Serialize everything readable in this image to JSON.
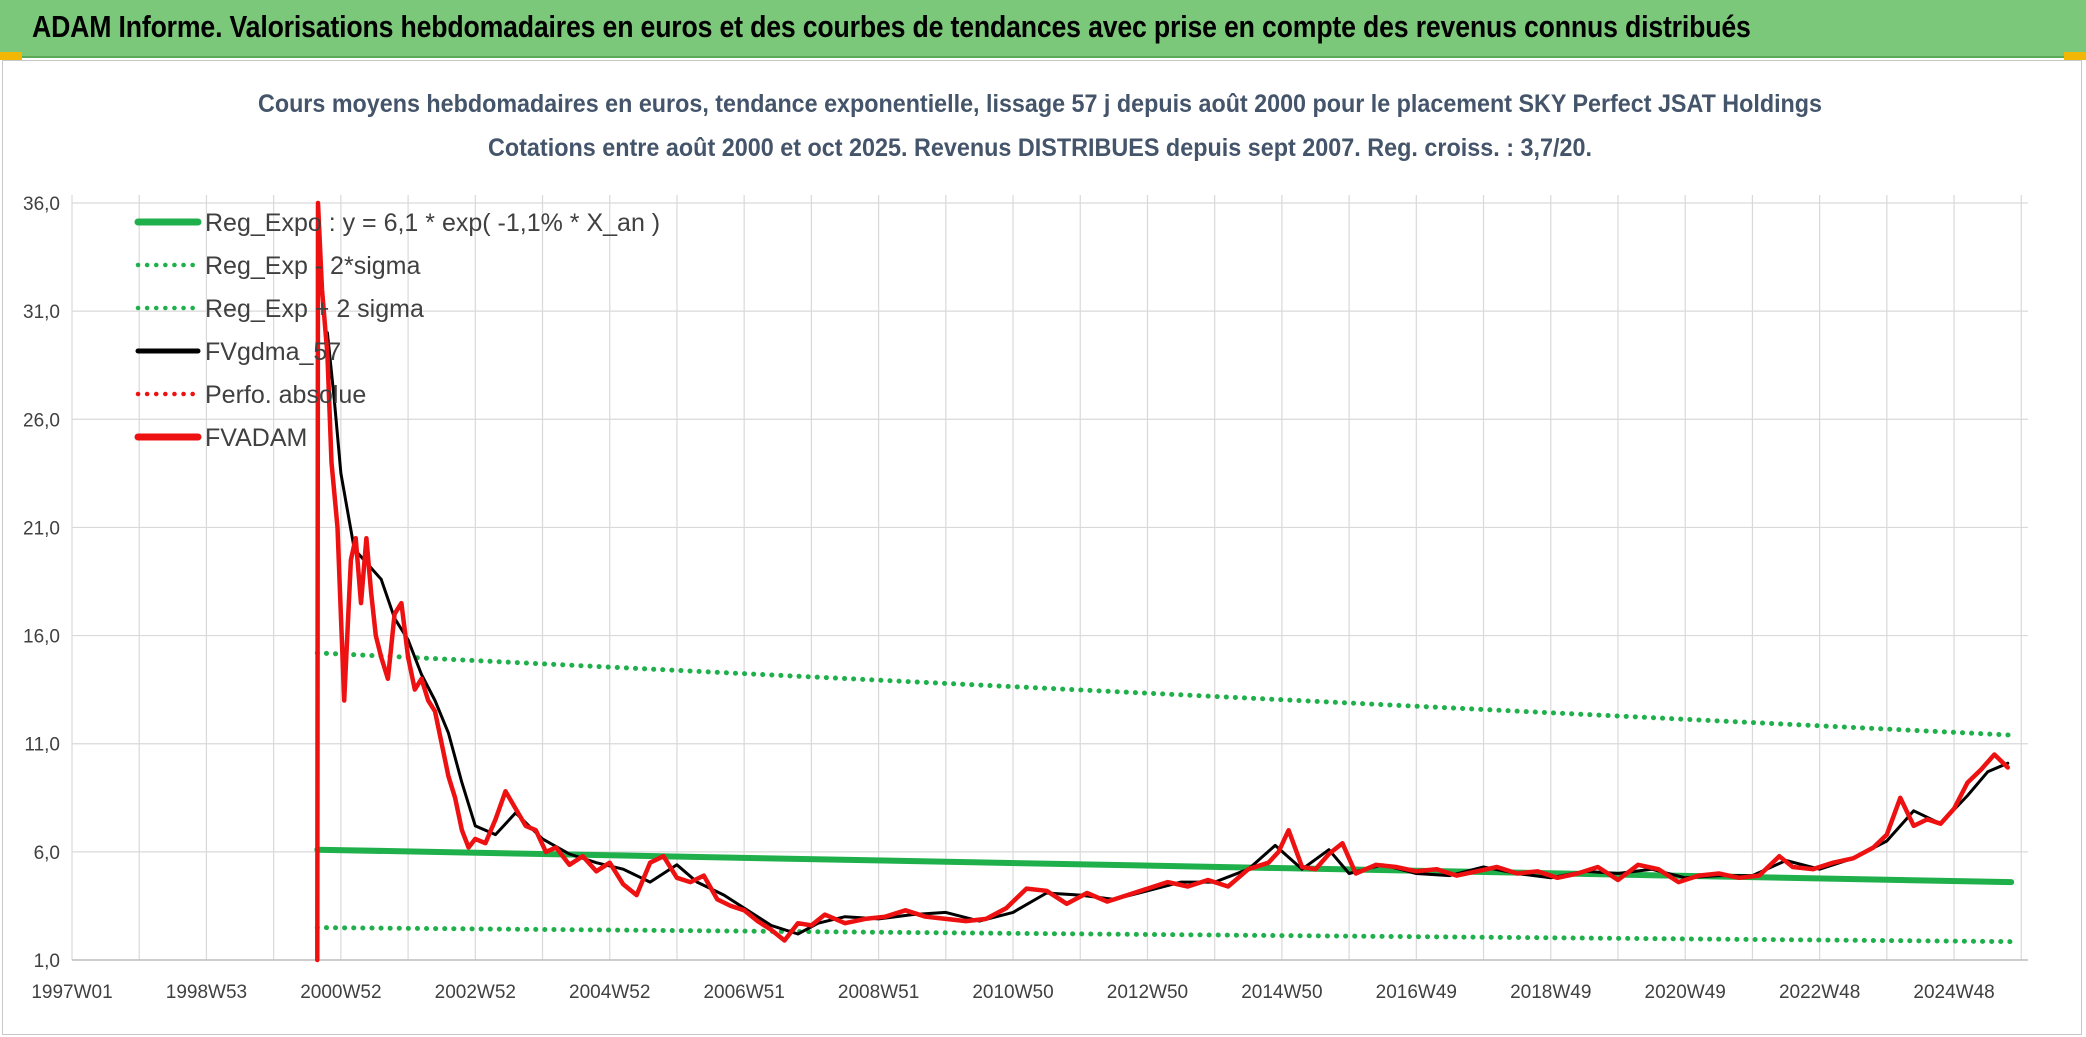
{
  "banner": {
    "title": "ADAM Informe. Valorisations hebdomadaires en euros et des courbes de tendances avec prise en compte des revenus connus distribués"
  },
  "colors": {
    "banner_bg": "#7cc87a",
    "reg_green": "#1fb04c",
    "black": "#000000",
    "red": "#ee1111",
    "title": "#44546a"
  },
  "chart_data": {
    "type": "line",
    "title": "Cours moyens hebdomadaires en euros, tendance exponentielle, lissage 57 j depuis août 2000 pour le placement SKY Perfect JSAT Holdings",
    "subtitle": "Cotations entre août 2000 et oct 2025. Revenus DISTRIBUES depuis sept 2007. Reg. croiss. : 3,7/20.",
    "xlabel": "",
    "ylabel": "",
    "ylim": [
      1,
      36
    ],
    "xlim": [
      1997.0,
      2026.1
    ],
    "grid": true,
    "legend_position": "top-left",
    "y_ticks": [
      "1,0",
      "6,0",
      "11,0",
      "16,0",
      "21,0",
      "26,0",
      "31,0",
      "36,0"
    ],
    "y_tick_values": [
      1,
      6,
      11,
      16,
      21,
      26,
      31,
      36
    ],
    "x_ticks": [
      "1997W01",
      "1998W53",
      "2000W52",
      "2002W52",
      "2004W52",
      "2006W51",
      "2008W51",
      "2010W50",
      "2012W50",
      "2014W50",
      "2016W49",
      "2018W49",
      "2020W49",
      "2022W48",
      "2024W48"
    ],
    "x_tick_values": [
      1997.0,
      1999.0,
      2001.0,
      2003.0,
      2005.0,
      2007.0,
      2009.0,
      2011.0,
      2013.0,
      2015.0,
      2017.0,
      2019.0,
      2021.0,
      2023.0,
      2025.0
    ],
    "series": [
      {
        "name": "Reg_Expo : y = 6,1 * exp( -1,1% *  X_an )",
        "style": "solid",
        "color": "#1fb04c",
        "x": [
          2000.65,
          2025.85
        ],
        "y": [
          6.1,
          4.6
        ]
      },
      {
        "name": "Reg_Exp - 2*sigma",
        "style": "dotted",
        "color": "#1fb04c",
        "x": [
          2000.65,
          2025.85
        ],
        "y": [
          2.5,
          1.85
        ]
      },
      {
        "name": "Reg_Exp + 2 sigma",
        "style": "dotted",
        "color": "#1fb04c",
        "x": [
          2000.65,
          2025.85
        ],
        "y": [
          15.2,
          11.4
        ]
      },
      {
        "name": "FVgdma_57",
        "style": "solid",
        "color": "#000000",
        "x": [
          2000.8,
          2000.9,
          2001.0,
          2001.2,
          2001.4,
          2001.6,
          2001.8,
          2002.0,
          2002.2,
          2002.4,
          2002.6,
          2002.8,
          2003.0,
          2003.3,
          2003.6,
          2004.0,
          2004.4,
          2004.8,
          2005.2,
          2005.6,
          2006.0,
          2006.3,
          2006.7,
          2007.0,
          2007.4,
          2007.8,
          2008.1,
          2008.5,
          2009.0,
          2009.5,
          2010.0,
          2010.5,
          2011.0,
          2011.5,
          2012.0,
          2012.5,
          2013.0,
          2013.5,
          2014.0,
          2014.5,
          2014.9,
          2015.3,
          2015.7,
          2016.0,
          2016.5,
          2017.0,
          2017.5,
          2018.0,
          2018.5,
          2019.0,
          2019.5,
          2020.0,
          2020.5,
          2021.0,
          2021.5,
          2022.0,
          2022.5,
          2023.0,
          2023.5,
          2024.0,
          2024.4,
          2024.8,
          2025.2,
          2025.5,
          2025.8
        ],
        "y": [
          30.0,
          27.0,
          23.5,
          20.0,
          19.3,
          18.6,
          16.8,
          15.8,
          14.2,
          13.0,
          11.5,
          9.2,
          7.2,
          6.8,
          7.8,
          6.6,
          5.9,
          5.5,
          5.2,
          4.6,
          5.4,
          4.6,
          4.0,
          3.4,
          2.6,
          2.2,
          2.7,
          3.0,
          2.9,
          3.1,
          3.2,
          2.8,
          3.2,
          4.1,
          4.0,
          3.8,
          4.2,
          4.6,
          4.6,
          5.2,
          6.3,
          5.2,
          6.1,
          5.0,
          5.4,
          5.0,
          4.9,
          5.3,
          5.0,
          4.8,
          5.1,
          5.0,
          5.2,
          4.8,
          4.9,
          4.9,
          5.6,
          5.2,
          5.7,
          6.5,
          7.9,
          7.3,
          8.6,
          9.7,
          10.1
        ],
        "y_note": ""
      },
      {
        "name": "Perfo. absolue",
        "style": "dotted",
        "color": "#ee1111",
        "x": [],
        "y": []
      },
      {
        "name": "FVADAM",
        "style": "solid",
        "color": "#ee1111",
        "x": [
          2000.65,
          2000.66,
          2000.72,
          2000.8,
          2000.86,
          2000.95,
          2001.05,
          2001.15,
          2001.22,
          2001.3,
          2001.38,
          2001.45,
          2001.52,
          2001.6,
          2001.7,
          2001.8,
          2001.9,
          2002.0,
          2002.1,
          2002.2,
          2002.3,
          2002.4,
          2002.5,
          2002.6,
          2002.7,
          2002.8,
          2002.9,
          2003.0,
          2003.15,
          2003.3,
          2003.45,
          2003.6,
          2003.75,
          2003.9,
          2004.05,
          2004.2,
          2004.4,
          2004.6,
          2004.8,
          2005.0,
          2005.2,
          2005.4,
          2005.6,
          2005.8,
          2006.0,
          2006.2,
          2006.4,
          2006.6,
          2006.8,
          2007.0,
          2007.2,
          2007.4,
          2007.6,
          2007.8,
          2008.0,
          2008.2,
          2008.5,
          2008.8,
          2009.1,
          2009.4,
          2009.7,
          2010.0,
          2010.3,
          2010.6,
          2010.9,
          2011.2,
          2011.5,
          2011.8,
          2012.1,
          2012.4,
          2012.7,
          2013.0,
          2013.3,
          2013.6,
          2013.9,
          2014.2,
          2014.5,
          2014.8,
          2014.95,
          2015.1,
          2015.3,
          2015.5,
          2015.7,
          2015.9,
          2016.1,
          2016.4,
          2016.7,
          2017.0,
          2017.3,
          2017.6,
          2017.9,
          2018.2,
          2018.5,
          2018.8,
          2019.1,
          2019.4,
          2019.7,
          2020.0,
          2020.3,
          2020.6,
          2020.9,
          2021.2,
          2021.5,
          2021.8,
          2022.1,
          2022.4,
          2022.6,
          2022.9,
          2023.2,
          2023.5,
          2023.8,
          2024.0,
          2024.2,
          2024.4,
          2024.6,
          2024.8,
          2025.0,
          2025.2,
          2025.4,
          2025.6,
          2025.8
        ],
        "y": [
          1.0,
          36.0,
          32.0,
          29.0,
          24.0,
          21.0,
          13.0,
          19.5,
          20.5,
          17.5,
          20.5,
          18.0,
          16.0,
          15.0,
          14.0,
          17.0,
          17.5,
          15.0,
          13.5,
          14.0,
          13.0,
          12.5,
          11.0,
          9.5,
          8.5,
          7.0,
          6.2,
          6.6,
          6.4,
          7.5,
          8.8,
          8.0,
          7.2,
          7.0,
          6.0,
          6.2,
          5.4,
          5.8,
          5.1,
          5.5,
          4.5,
          4.0,
          5.5,
          5.8,
          4.8,
          4.6,
          4.9,
          3.8,
          3.5,
          3.3,
          2.8,
          2.4,
          1.9,
          2.7,
          2.6,
          3.1,
          2.7,
          2.9,
          3.0,
          3.3,
          3.0,
          2.9,
          2.8,
          2.9,
          3.4,
          4.3,
          4.2,
          3.6,
          4.1,
          3.7,
          4.0,
          4.3,
          4.6,
          4.4,
          4.7,
          4.4,
          5.2,
          5.5,
          6.0,
          7.0,
          5.3,
          5.2,
          5.9,
          6.4,
          5.0,
          5.4,
          5.3,
          5.1,
          5.2,
          4.9,
          5.1,
          5.3,
          5.0,
          5.1,
          4.8,
          5.0,
          5.3,
          4.7,
          5.4,
          5.2,
          4.6,
          4.9,
          5.0,
          4.8,
          4.9,
          5.8,
          5.3,
          5.2,
          5.5,
          5.7,
          6.2,
          6.8,
          8.5,
          7.2,
          7.5,
          7.3,
          8.0,
          9.2,
          9.8,
          10.5,
          9.9
        ]
      }
    ]
  }
}
